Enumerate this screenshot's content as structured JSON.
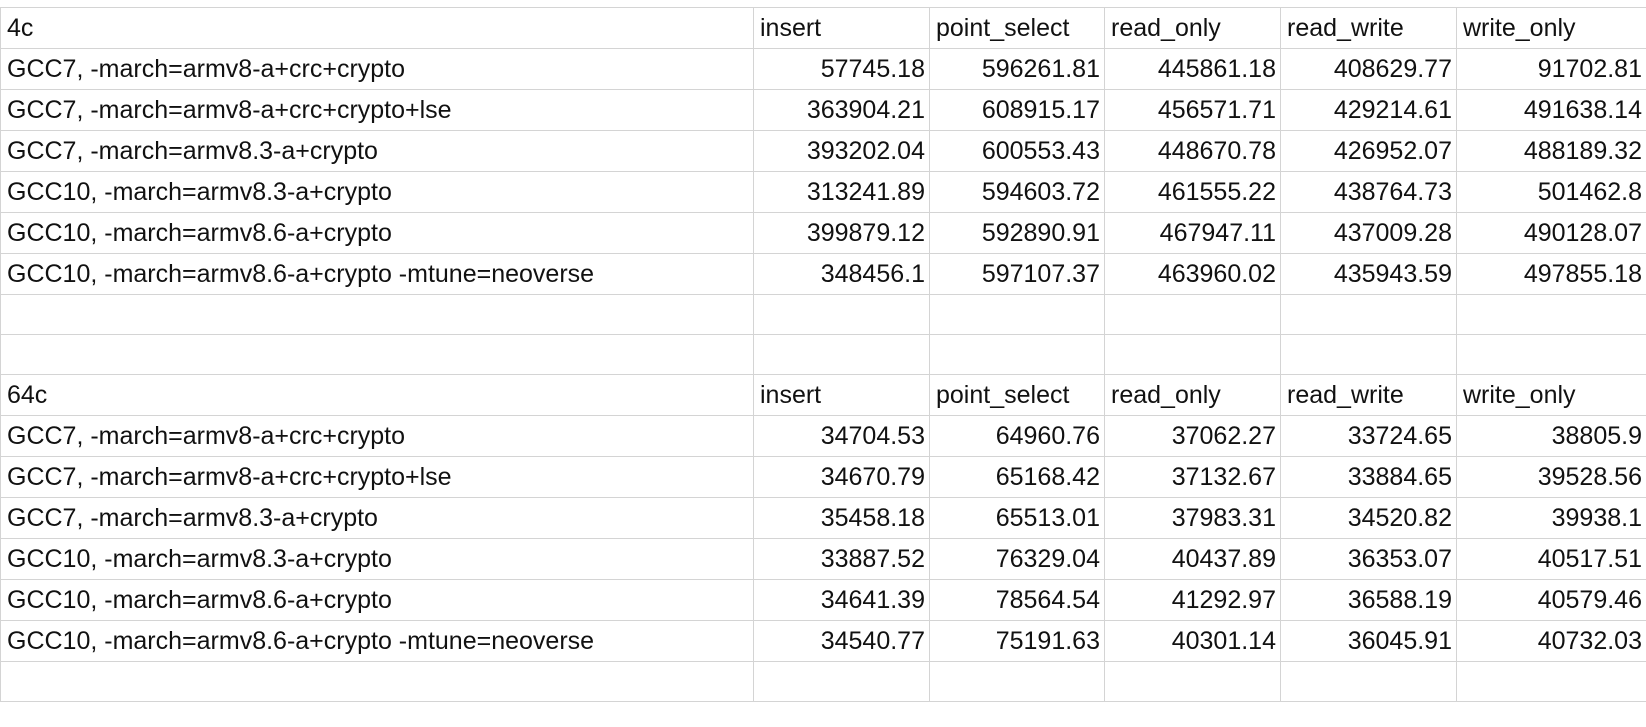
{
  "sheet": {
    "sections": [
      {
        "label": "4c",
        "headers": [
          "insert",
          "point_select",
          "read_only",
          "read_write",
          "write_only"
        ],
        "rows": [
          {
            "config": "GCC7, -march=armv8-a+crc+crypto",
            "values": [
              "57745.18",
              "596261.81",
              "445861.18",
              "408629.77",
              "91702.81"
            ]
          },
          {
            "config": "GCC7, -march=armv8-a+crc+crypto+lse",
            "values": [
              "363904.21",
              "608915.17",
              "456571.71",
              "429214.61",
              "491638.14"
            ]
          },
          {
            "config": "GCC7, -march=armv8.3-a+crypto",
            "values": [
              "393202.04",
              "600553.43",
              "448670.78",
              "426952.07",
              "488189.32"
            ]
          },
          {
            "config": "GCC10, -march=armv8.3-a+crypto",
            "values": [
              "313241.89",
              "594603.72",
              "461555.22",
              "438764.73",
              "501462.8"
            ]
          },
          {
            "config": "GCC10, -march=armv8.6-a+crypto",
            "values": [
              "399879.12",
              "592890.91",
              "467947.11",
              "437009.28",
              "490128.07"
            ]
          },
          {
            "config": "GCC10, -march=armv8.6-a+crypto -mtune=neoverse",
            "values": [
              "348456.1",
              "597107.37",
              "463960.02",
              "435943.59",
              "497855.18"
            ]
          }
        ]
      },
      {
        "label": "64c",
        "headers": [
          "insert",
          "point_select",
          "read_only",
          "read_write",
          "write_only"
        ],
        "rows": [
          {
            "config": "GCC7, -march=armv8-a+crc+crypto",
            "values": [
              "34704.53",
              "64960.76",
              "37062.27",
              "33724.65",
              "38805.9"
            ]
          },
          {
            "config": "GCC7, -march=armv8-a+crc+crypto+lse",
            "values": [
              "34670.79",
              "65168.42",
              "37132.67",
              "33884.65",
              "39528.56"
            ]
          },
          {
            "config": "GCC7, -march=armv8.3-a+crypto",
            "values": [
              "35458.18",
              "65513.01",
              "37983.31",
              "34520.82",
              "39938.1"
            ]
          },
          {
            "config": "GCC10, -march=armv8.3-a+crypto",
            "values": [
              "33887.52",
              "76329.04",
              "40437.89",
              "36353.07",
              "40517.51"
            ]
          },
          {
            "config": "GCC10, -march=armv8.6-a+crypto",
            "values": [
              "34641.39",
              "78564.54",
              "41292.97",
              "36588.19",
              "40579.46"
            ]
          },
          {
            "config": "GCC10, -march=armv8.6-a+crypto -mtune=neoverse",
            "values": [
              "34540.77",
              "75191.63",
              "40301.14",
              "36045.91",
              "40732.03"
            ]
          }
        ]
      }
    ]
  }
}
